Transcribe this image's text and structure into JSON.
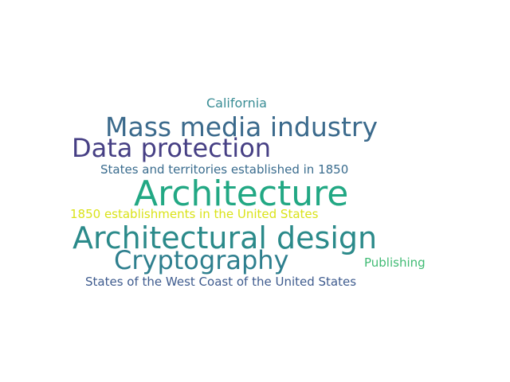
{
  "words": [
    {
      "text": "California",
      "color": "#3a8d95"
    },
    {
      "text": "Mass media industry",
      "color": "#3b6a8c"
    },
    {
      "text": "Data protection",
      "color": "#463f84"
    },
    {
      "text": "States and territories established in 1850",
      "color": "#3a6c8e"
    },
    {
      "text": "Architecture",
      "color": "#22a884"
    },
    {
      "text": "1850 establishments in the United States",
      "color": "#dae319"
    },
    {
      "text": "Architectural design",
      "color": "#2b8a8a"
    },
    {
      "text": "Cryptography",
      "color": "#2e7f8e"
    },
    {
      "text": "Publishing",
      "color": "#40bb74"
    },
    {
      "text": "States of the West Coast of the United States",
      "color": "#3e5b8e"
    }
  ]
}
